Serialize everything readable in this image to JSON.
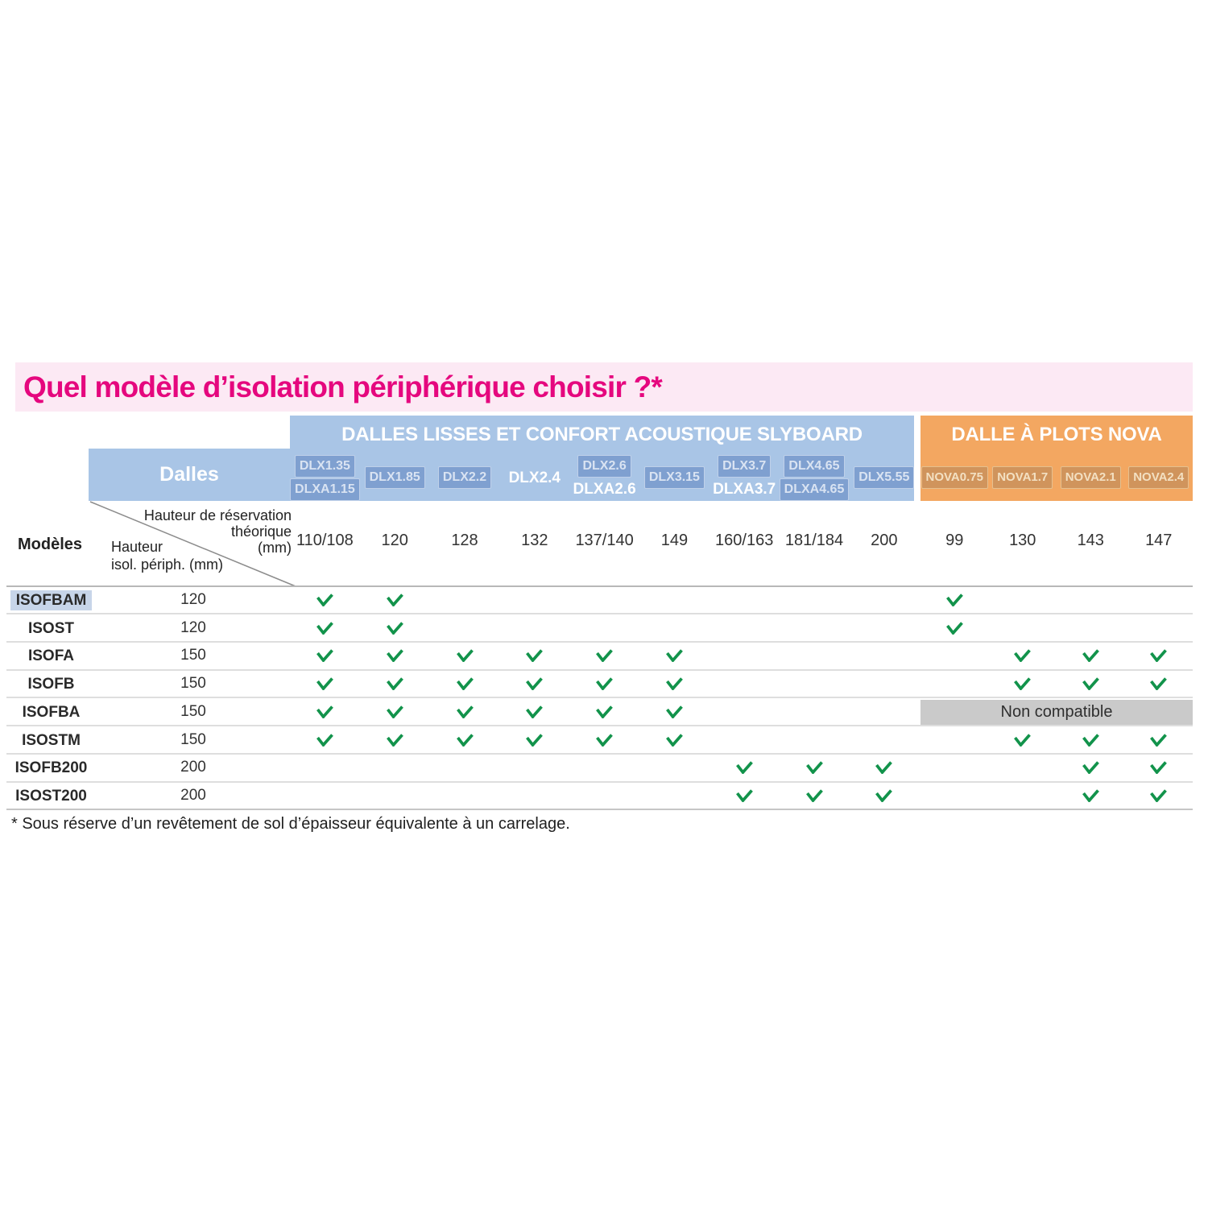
{
  "title": "Quel modèle d’isolation périphérique choisir ?*",
  "footnote": "* Sous réserve d’un revêtement de sol d’épaisseur équivalente à un carrelage.",
  "corner": {
    "models_label": "Modèles",
    "dalles_label": "Dalles",
    "row_axis_line1": "Hauteur",
    "row_axis_line2": "isol. périph. (mm)",
    "col_axis_line1": "Hauteur de réservation",
    "col_axis_line2": "théorique",
    "col_axis_line3": "(mm)"
  },
  "groups": [
    {
      "id": "slyboard",
      "label": "DALLES LISSES ET CONFORT ACOUSTIQUE SLYBOARD"
    },
    {
      "id": "nova",
      "label": "DALLE À PLOTS NOVA"
    }
  ],
  "columns": [
    {
      "group": "slyboard",
      "lines": [
        {
          "text": "DLX1.35",
          "chip": true
        },
        {
          "text": "DLXA1.15",
          "chip": true
        }
      ],
      "height": "110/108"
    },
    {
      "group": "slyboard",
      "lines": [
        {
          "text": "DLX1.85",
          "chip": true
        }
      ],
      "height": "120"
    },
    {
      "group": "slyboard",
      "lines": [
        {
          "text": "DLX2.2",
          "chip": true
        }
      ],
      "height": "128"
    },
    {
      "group": "slyboard",
      "lines": [
        {
          "text": "DLX2.4",
          "chip": false
        }
      ],
      "height": "132"
    },
    {
      "group": "slyboard",
      "lines": [
        {
          "text": "DLX2.6",
          "chip": true
        },
        {
          "text": "DLXA2.6",
          "chip": false
        }
      ],
      "height": "137/140"
    },
    {
      "group": "slyboard",
      "lines": [
        {
          "text": "DLX3.15",
          "chip": true
        }
      ],
      "height": "149"
    },
    {
      "group": "slyboard",
      "lines": [
        {
          "text": "DLX3.7",
          "chip": true
        },
        {
          "text": "DLXA3.7",
          "chip": false
        }
      ],
      "height": "160/163"
    },
    {
      "group": "slyboard",
      "lines": [
        {
          "text": "DLX4.65",
          "chip": true
        },
        {
          "text": "DLXA4.65",
          "chip": true
        }
      ],
      "height": "181/184"
    },
    {
      "group": "slyboard",
      "lines": [
        {
          "text": "DLX5.55",
          "chip": true
        }
      ],
      "height": "200"
    },
    {
      "group": "nova",
      "lines": [
        {
          "text": "NOVA0.75",
          "chip": true
        }
      ],
      "height": "99"
    },
    {
      "group": "nova",
      "lines": [
        {
          "text": "NOVA1.7",
          "chip": true
        }
      ],
      "height": "130"
    },
    {
      "group": "nova",
      "lines": [
        {
          "text": "NOVA2.1",
          "chip": true
        }
      ],
      "height": "143"
    },
    {
      "group": "nova",
      "lines": [
        {
          "text": "NOVA2.4",
          "chip": true
        }
      ],
      "height": "147"
    }
  ],
  "rows": [
    {
      "model": "ISOFBAM",
      "height": "120",
      "highlight": true,
      "checks": [
        1,
        2,
        10
      ]
    },
    {
      "model": "ISOST",
      "height": "120",
      "checks": [
        1,
        2,
        10
      ]
    },
    {
      "model": "ISOFA",
      "height": "150",
      "checks": [
        1,
        2,
        3,
        4,
        5,
        6,
        11,
        12,
        13
      ]
    },
    {
      "model": "ISOFB",
      "height": "150",
      "checks": [
        1,
        2,
        3,
        4,
        5,
        6,
        11,
        12,
        13
      ]
    },
    {
      "model": "ISOFBA",
      "height": "150",
      "checks": [
        1,
        2,
        3,
        4,
        5,
        6
      ],
      "note": {
        "text": "Non compatible",
        "span": [
          10,
          13
        ]
      }
    },
    {
      "model": "ISOSTM",
      "height": "150",
      "checks": [
        1,
        2,
        3,
        4,
        5,
        6,
        11,
        12,
        13
      ]
    },
    {
      "model": "ISOFB200",
      "height": "200",
      "checks": [
        7,
        8,
        9,
        12,
        13
      ]
    },
    {
      "model": "ISOST200",
      "height": "200",
      "checks": [
        7,
        8,
        9,
        12,
        13
      ]
    }
  ],
  "colors": {
    "title_text": "#e5077e",
    "title_bg": "#fce9f4",
    "slyboard_band": "#a9c5e6",
    "sly_chip_bg": "#7fa0d0",
    "sly_chip_border": "#bfd0e9",
    "sly_chip_text": "#d9e3f2",
    "nova_band": "#f3a761",
    "nova_chip_bg": "#d0945c",
    "nova_chip_border": "#e5c08f",
    "nova_chip_text": "#f3e0c2",
    "check": "#12934b",
    "highlight": "#c7d5e9",
    "note_bg": "#cacaca",
    "grid_line": "#dedede",
    "grid_line_strong": "#b8b8b8",
    "grid_line_bottom": "#c6c6c6",
    "diagonal_line": "#8c8c8c"
  }
}
